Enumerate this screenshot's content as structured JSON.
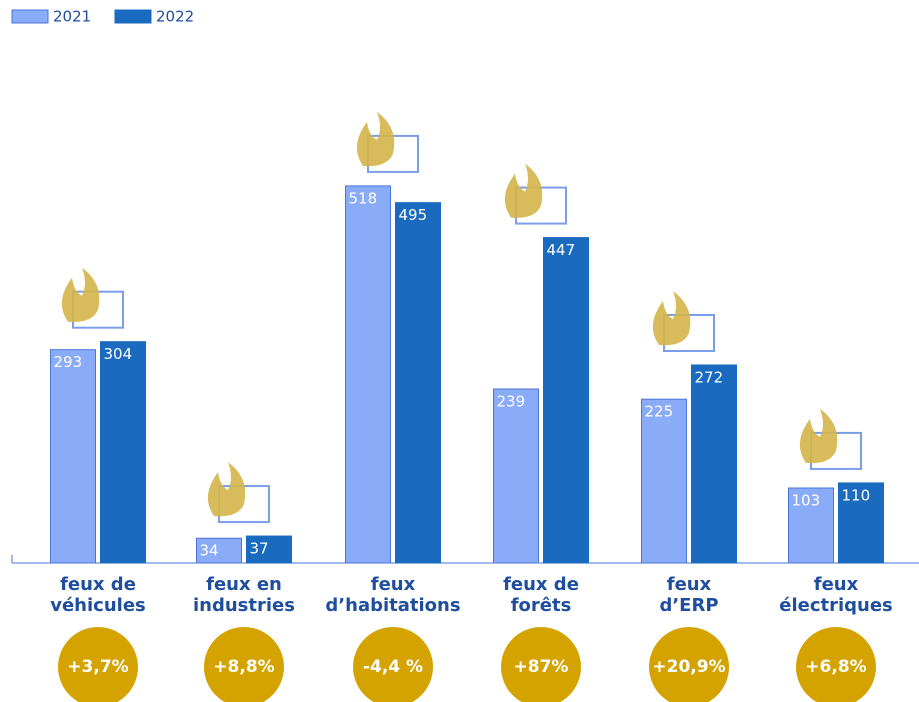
{
  "chart_data": {
    "type": "bar",
    "categories": [
      "feux de\nvéhicules",
      "feux en\nindustries",
      "feux\nd’habitations",
      "feux de\nforêts",
      "feux\nd’ERP",
      "feux\nélectriques"
    ],
    "series": [
      {
        "name": "2021",
        "color": "#8aabf7",
        "values": [
          293,
          34,
          518,
          239,
          225,
          103
        ]
      },
      {
        "name": "2022",
        "color": "#1a6bbf",
        "values": [
          304,
          37,
          495,
          447,
          272,
          110
        ]
      }
    ],
    "changes": [
      "+3,7%",
      "+8,8%",
      "-4,4 %",
      "+87%",
      "+20,9%",
      "+6,8%"
    ]
  }
}
